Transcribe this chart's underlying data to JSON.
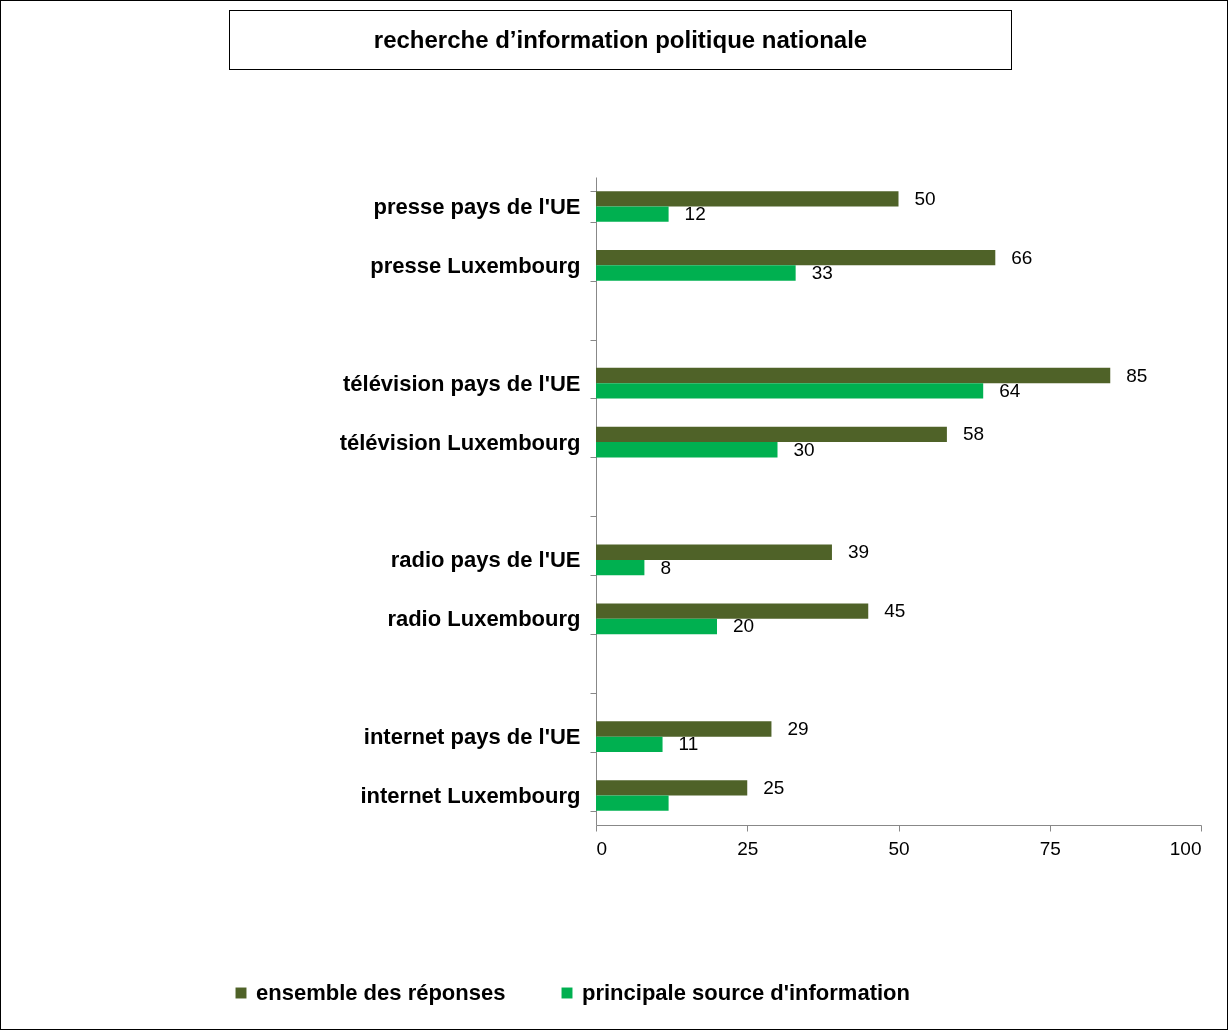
{
  "chart_data": {
    "type": "bar",
    "orientation": "horizontal",
    "title": "recherche d’information politique nationale",
    "categories": [
      "presse pays de l'UE",
      "presse Luxembourg",
      null,
      "télévision pays de l'UE",
      "télévision Luxembourg",
      null,
      "radio pays de l'UE",
      "radio Luxembourg",
      null,
      "internet pays de l'UE",
      "internet Luxembourg"
    ],
    "series": [
      {
        "name": "ensemble des réponses",
        "color": "#4f6228",
        "values": [
          50,
          66,
          null,
          85,
          58,
          null,
          39,
          45,
          null,
          29,
          25
        ],
        "value_labels": [
          "50",
          "66",
          null,
          "85",
          "58",
          null,
          "39",
          "45",
          null,
          "29",
          "25"
        ]
      },
      {
        "name": "principale source d'information",
        "color": "#00b050",
        "values": [
          12,
          33,
          null,
          64,
          30,
          null,
          8,
          20,
          null,
          11,
          12
        ],
        "value_labels": [
          "12",
          "33",
          null,
          "64",
          "30",
          null,
          "8",
          "20",
          null,
          "11",
          null
        ]
      }
    ],
    "xlim": [
      0,
      100
    ],
    "xticks": [
      0,
      25,
      50,
      75,
      100
    ],
    "grid": false,
    "legend": "bottom"
  }
}
